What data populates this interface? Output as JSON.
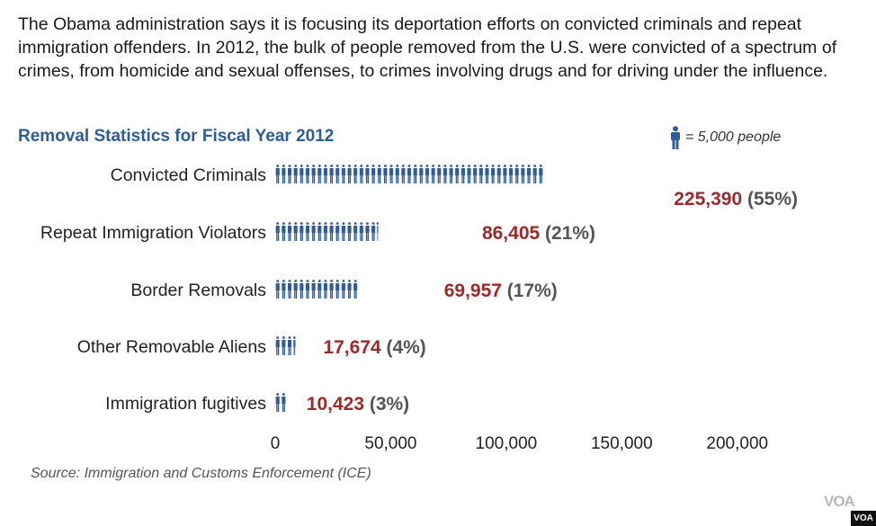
{
  "intro_text": "The Obama administration says it is focusing its deportation efforts on convicted criminals and repeat immigration offenders. In 2012, the bulk of people removed from the U.S. were convicted of a spectrum of crimes, from homicide and sexual offenses, to crimes involving drugs and for driving under the influence.",
  "legend": {
    "icon": "person-icon",
    "text": "= 5,000 people"
  },
  "source": "Source: Immigration and Customs Enforcement (ICE)",
  "branding": {
    "mark": "VOA",
    "badge": "VOA"
  },
  "colors": {
    "icon": "#2e5c97",
    "value": "#9b2a2a",
    "percent": "#555555",
    "title": "#2e5c97"
  },
  "chart_data": {
    "type": "bar",
    "title": "Removal Statistics for Fiscal Year 2012",
    "unit_per_icon": 5000,
    "categories": [
      "Convicted Criminals",
      "Repeat Immigration Violators",
      "Border Removals",
      "Other Removable Aliens",
      "Immigration fugitives"
    ],
    "values": [
      225390,
      86405,
      69957,
      17674,
      10423
    ],
    "value_labels": [
      "225,390",
      "86,405",
      "69,957",
      "17,674",
      "10,423"
    ],
    "percent_labels": [
      "(55%)",
      "(21%)",
      "(17%)",
      "(4%)",
      "(3%)"
    ],
    "x_ticks": [
      0,
      50000,
      100000,
      150000,
      200000
    ],
    "x_tick_labels": [
      "0",
      "50,000",
      "100,000",
      "150,000",
      "200,000"
    ],
    "xlim": [
      0,
      225390
    ],
    "grid": false,
    "legend_placement": "top-right"
  }
}
